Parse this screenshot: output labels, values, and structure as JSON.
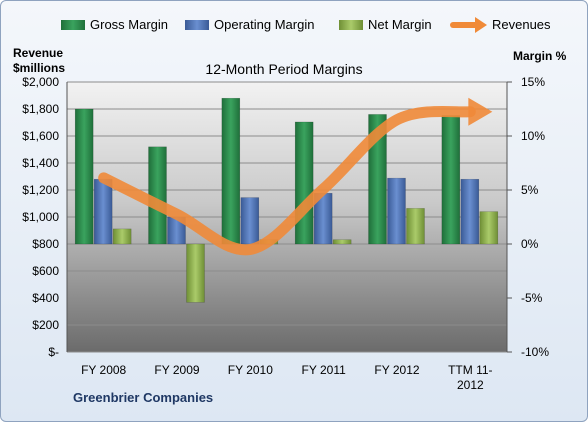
{
  "chart_data": {
    "type": "bar",
    "title": "12-Month Period Margins",
    "company": "Greenbrier Companies",
    "y_left_label_line1": "Revenue",
    "y_left_label_line2": "$millions",
    "y_right_label": "Margin %",
    "categories": [
      "FY 2008",
      "FY 2009",
      "FY 2010",
      "FY 2011",
      "FY 2012",
      "TTM 11-2012"
    ],
    "x_tick_labels": [
      [
        "FY 2008"
      ],
      [
        "FY 2009"
      ],
      [
        "FY 2010"
      ],
      [
        "FY 2011"
      ],
      [
        "FY 2012"
      ],
      [
        "TTM 11-",
        "2012"
      ]
    ],
    "left_axis": {
      "min": 0,
      "max": 2000,
      "step": 200,
      "tick_labels": [
        "$-",
        "$200",
        "$400",
        "$600",
        "$800",
        "$1,000",
        "$1,200",
        "$1,400",
        "$1,600",
        "$1,800",
        "$2,000"
      ]
    },
    "right_axis": {
      "min": -10,
      "max": 15,
      "step": 5,
      "tick_labels": [
        "-10%",
        "-5%",
        "0%",
        "5%",
        "10%",
        "15%"
      ]
    },
    "series": [
      {
        "name": "Gross Margin",
        "axis": "right",
        "type": "bar",
        "color": "#2e8b4f",
        "values": [
          12.5,
          9.0,
          13.5,
          11.3,
          12.0,
          11.9
        ]
      },
      {
        "name": "Operating Margin",
        "axis": "right",
        "type": "bar",
        "color": "#4f74b8",
        "values": [
          6.0,
          2.5,
          4.3,
          4.7,
          6.1,
          6.0
        ]
      },
      {
        "name": "Net Margin",
        "axis": "right",
        "type": "bar",
        "color": "#9bbb59",
        "values": [
          1.4,
          -5.4,
          0.4,
          0.4,
          3.3,
          3.0
        ]
      },
      {
        "name": "Revenues",
        "axis": "left",
        "type": "line",
        "color": "#f08a38",
        "values": [
          1290,
          1020,
          760,
          1210,
          1720,
          1780
        ]
      }
    ],
    "grid": true,
    "legend_position": "top"
  }
}
